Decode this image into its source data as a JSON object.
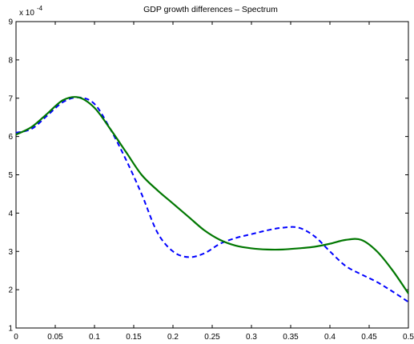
{
  "chart_data": {
    "type": "line",
    "title": "GDP growth differences – Spectrum",
    "xlabel": "",
    "ylabel": "",
    "y_scale_label": "x 10",
    "y_scale_exponent": "-4",
    "xlim": [
      0,
      0.5
    ],
    "ylim": [
      1,
      9
    ],
    "grid": false,
    "legend": "none",
    "xticks": [
      0,
      0.05,
      0.1,
      0.15,
      0.2,
      0.25,
      0.3,
      0.35,
      0.4,
      0.45,
      0.5
    ],
    "xtick_labels": [
      "0",
      "0.05",
      "0.1",
      "0.15",
      "0.2",
      "0.25",
      "0.3",
      "0.35",
      "0.4",
      "0.45",
      "0.5"
    ],
    "yticks": [
      1,
      2,
      3,
      4,
      5,
      6,
      7,
      8,
      9
    ],
    "ytick_labels": [
      "1",
      "2",
      "3",
      "4",
      "5",
      "6",
      "7",
      "8",
      "9"
    ],
    "series": [
      {
        "style": "dashed",
        "color": "#0000ff",
        "x": [
          0,
          0.02,
          0.04,
          0.06,
          0.08,
          0.1,
          0.12,
          0.14,
          0.16,
          0.18,
          0.2,
          0.22,
          0.24,
          0.26,
          0.28,
          0.3,
          0.32,
          0.34,
          0.36,
          0.38,
          0.4,
          0.42,
          0.44,
          0.46,
          0.48,
          0.5
        ],
        "y": [
          6.1,
          6.2,
          6.55,
          6.9,
          7.02,
          6.85,
          6.2,
          5.4,
          4.5,
          3.5,
          3.0,
          2.85,
          2.95,
          3.2,
          3.35,
          3.45,
          3.55,
          3.62,
          3.62,
          3.4,
          3.0,
          2.62,
          2.4,
          2.2,
          1.95,
          1.68
        ]
      },
      {
        "style": "solid",
        "color": "#007700",
        "x": [
          0,
          0.02,
          0.04,
          0.06,
          0.08,
          0.1,
          0.12,
          0.14,
          0.16,
          0.18,
          0.2,
          0.22,
          0.24,
          0.26,
          0.28,
          0.3,
          0.32,
          0.34,
          0.36,
          0.38,
          0.4,
          0.42,
          0.44,
          0.46,
          0.48,
          0.5
        ],
        "y": [
          6.05,
          6.25,
          6.6,
          6.95,
          7.02,
          6.75,
          6.2,
          5.6,
          5.0,
          4.6,
          4.25,
          3.9,
          3.55,
          3.3,
          3.15,
          3.08,
          3.05,
          3.05,
          3.08,
          3.12,
          3.2,
          3.3,
          3.3,
          3.0,
          2.5,
          1.9
        ]
      }
    ]
  }
}
